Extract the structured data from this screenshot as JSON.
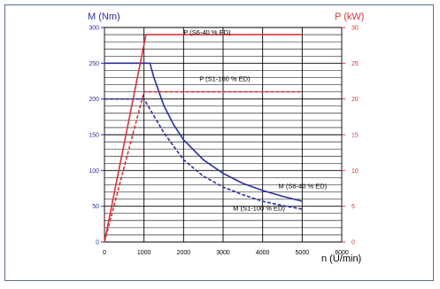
{
  "chart_data": {
    "type": "line",
    "x_label": "n (U/min)",
    "x_ticks": [
      0,
      1000,
      2000,
      3000,
      4000,
      5000,
      6000
    ],
    "xlim": [
      0,
      6000
    ],
    "y_left_label": "M (Nm)",
    "y_left_ticks": [
      0,
      50,
      100,
      150,
      200,
      250,
      300
    ],
    "y_left_lim": [
      0,
      300
    ],
    "y_right_label": "P (kW)",
    "y_right_ticks": [
      0,
      5,
      10,
      15,
      20,
      25,
      30
    ],
    "y_right_lim": [
      0,
      30
    ],
    "grid": true,
    "series": [
      {
        "name": "M (S6-40 % ED)",
        "axis": "left",
        "color": "#2b2f9e",
        "dashed": false,
        "points": [
          [
            0,
            250
          ],
          [
            1000,
            250
          ],
          [
            1150,
            250
          ],
          [
            1250,
            230
          ],
          [
            1500,
            191
          ],
          [
            1750,
            164
          ],
          [
            2000,
            143
          ],
          [
            2500,
            115
          ],
          [
            3000,
            96
          ],
          [
            3500,
            82
          ],
          [
            4000,
            72
          ],
          [
            4500,
            64
          ],
          [
            5000,
            57
          ]
        ]
      },
      {
        "name": "M (S1-100 % ED)",
        "axis": "left",
        "color": "#2b2f9e",
        "dashed": true,
        "points": [
          [
            0,
            200
          ],
          [
            1000,
            200
          ],
          [
            1500,
            153
          ],
          [
            2000,
            115
          ],
          [
            2500,
            92
          ],
          [
            3000,
            77
          ],
          [
            3500,
            66
          ],
          [
            4000,
            57
          ],
          [
            4500,
            51
          ],
          [
            5000,
            46
          ]
        ]
      },
      {
        "name": "P (S6-40 % ED)",
        "axis": "right",
        "color": "#d9343a",
        "dashed": false,
        "points": [
          [
            0,
            0
          ],
          [
            1050,
            29
          ],
          [
            5000,
            29
          ]
        ]
      },
      {
        "name": "P (S1-100 % ED)",
        "axis": "right",
        "color": "#d9343a",
        "dashed": true,
        "points": [
          [
            0,
            0
          ],
          [
            1000,
            21
          ],
          [
            5000,
            21
          ]
        ]
      }
    ],
    "annotations": [
      {
        "text": "P (S6-40 % ED)",
        "x": 2000,
        "y_left": 290
      },
      {
        "text": "P (S1-100 % ED)",
        "x": 2400,
        "y_left": 225
      },
      {
        "text": "M (S6-40 % ED)",
        "x": 4400,
        "y_left": 75
      },
      {
        "text": "M (S1-100 % ED)",
        "x": 3250,
        "y_left": 44
      }
    ]
  }
}
